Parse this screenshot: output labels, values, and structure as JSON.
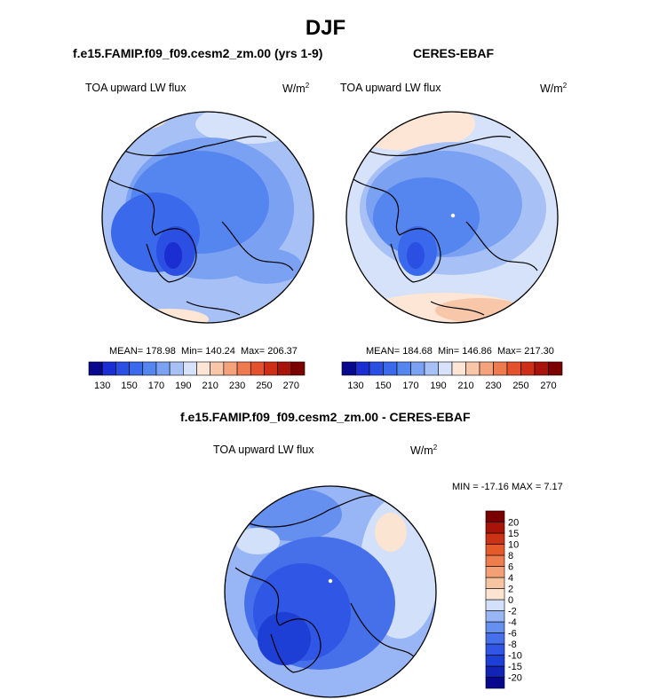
{
  "figure": {
    "season_title": "DJF",
    "panels": [
      {
        "title": "f.e15.FAMIP.f09_f09.cesm2_zm.00 (yrs 1-9)",
        "variable": "TOA upward LW flux",
        "units_base": "W/m",
        "units_exp": "2",
        "stats": {
          "mean": "MEAN= 178.98",
          "min": "Min= 140.24",
          "max": "Max= 206.37"
        }
      },
      {
        "title": "CERES-EBAF",
        "variable": "TOA upward LW flux",
        "units_base": "W/m",
        "units_exp": "2",
        "stats": {
          "mean": "MEAN= 184.68",
          "min": "Min= 146.86",
          "max": "Max= 217.30"
        }
      }
    ],
    "diff_panel": {
      "title": "f.e15.FAMIP.f09_f09.cesm2_zm.00 - CERES-EBAF",
      "variable": "TOA upward LW flux",
      "units_base": "W/m",
      "units_exp": "2",
      "stats": "MIN = -17.16 MAX =   7.17"
    }
  },
  "chart_data": [
    {
      "type": "heatmap",
      "projection": "polar-stereographic-north",
      "title": "f.e15.FAMIP.f09_f09.cesm2_zm.00 (yrs 1-9)",
      "variable": "TOA upward LW flux",
      "units": "W/m2",
      "mean": 178.98,
      "min": 140.24,
      "max": 206.37,
      "colorbar": {
        "orientation": "horizontal",
        "levels": [
          130,
          140,
          150,
          160,
          170,
          180,
          190,
          200,
          210,
          220,
          230,
          240,
          250,
          260,
          270
        ],
        "tick_labels": [
          "130",
          "150",
          "170",
          "190",
          "210",
          "230",
          "250",
          "270"
        ],
        "colors": [
          "#08088c",
          "#1b2ed1",
          "#2a4fe2",
          "#3a6aeb",
          "#5585ef",
          "#7aa1f2",
          "#a7c1f6",
          "#d5e2fa",
          "#fde6d6",
          "#f8c6a8",
          "#f4a27c",
          "#ee7a50",
          "#e3522c",
          "#cd2e17",
          "#a8130a",
          "#7b0000"
        ]
      }
    },
    {
      "type": "heatmap",
      "projection": "polar-stereographic-north",
      "title": "CERES-EBAF",
      "variable": "TOA upward LW flux",
      "units": "W/m2",
      "mean": 184.68,
      "min": 146.86,
      "max": 217.3,
      "colorbar": {
        "orientation": "horizontal",
        "levels": [
          130,
          140,
          150,
          160,
          170,
          180,
          190,
          200,
          210,
          220,
          230,
          240,
          250,
          260,
          270
        ],
        "tick_labels": [
          "130",
          "150",
          "170",
          "190",
          "210",
          "230",
          "250",
          "270"
        ],
        "colors": [
          "#08088c",
          "#1b2ed1",
          "#2a4fe2",
          "#3a6aeb",
          "#5585ef",
          "#7aa1f2",
          "#a7c1f6",
          "#d5e2fa",
          "#fde6d6",
          "#f8c6a8",
          "#f4a27c",
          "#ee7a50",
          "#e3522c",
          "#cd2e17",
          "#a8130a",
          "#7b0000"
        ]
      }
    },
    {
      "type": "heatmap",
      "projection": "polar-stereographic-north",
      "title": "f.e15.FAMIP.f09_f09.cesm2_zm.00 - CERES-EBAF",
      "variable": "TOA upward LW flux",
      "units": "W/m2",
      "min": -17.16,
      "max": 7.17,
      "colorbar": {
        "orientation": "vertical",
        "levels": [
          -20,
          -15,
          -10,
          -8,
          -6,
          -4,
          -2,
          0,
          2,
          4,
          6,
          8,
          10,
          15,
          20
        ],
        "tick_labels": [
          "-20",
          "-15",
          "-10",
          "-8",
          "-6",
          "-4",
          "-2",
          "0",
          "2",
          "4",
          "6",
          "8",
          "10",
          "15",
          "20"
        ],
        "colors": [
          "#08088c",
          "#1224b5",
          "#1e3fd6",
          "#2f56e4",
          "#4570ea",
          "#6690f0",
          "#98b6f5",
          "#d3e0fa",
          "#fbe4d2",
          "#f7c4a2",
          "#f3a077",
          "#ee7d4d",
          "#e45a2b",
          "#cc3216",
          "#a81408",
          "#7a0000"
        ]
      }
    }
  ]
}
